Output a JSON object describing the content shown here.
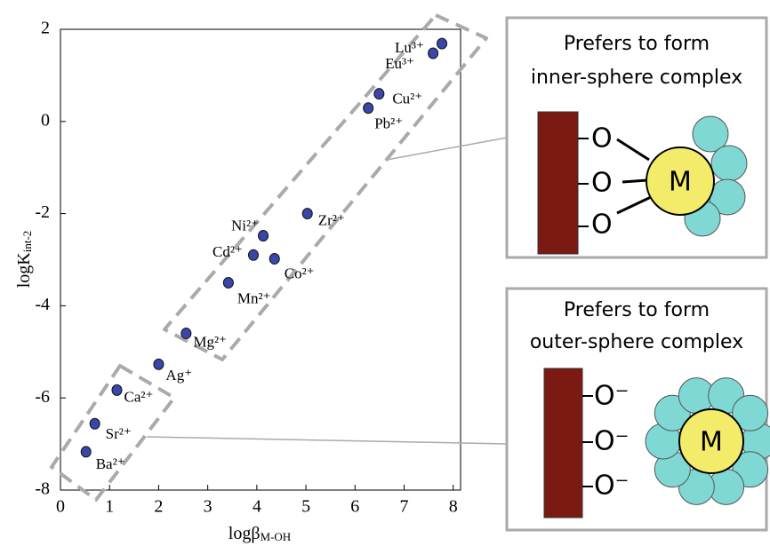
{
  "chart_data": {
    "type": "scatter",
    "x_label": "logβ",
    "x_label_sub": "M-OH",
    "y_label": "logK",
    "y_label_sub": "int-2",
    "xlim": [
      0,
      8.15
    ],
    "ylim": [
      -8,
      2
    ],
    "xticks": [
      0,
      1,
      2,
      3,
      4,
      5,
      6,
      7,
      8
    ],
    "yticks": [
      -8,
      -6,
      -4,
      -2,
      0,
      2
    ],
    "series": [
      {
        "color": "#3a46a8",
        "labels": [
          "Lu³⁺",
          "Eu³⁺",
          "Cu²⁺",
          "Pb²⁺",
          "Zr²⁺",
          "Ni²⁺",
          "Cd²⁺",
          "Co²⁺",
          "Mn²⁺",
          "Mg²⁺",
          "Ag⁺",
          "Ca²⁺",
          "Sr²⁺",
          "Ba²⁺"
        ],
        "x": [
          7.77,
          7.59,
          6.49,
          6.27,
          5.03,
          4.13,
          3.93,
          4.36,
          3.42,
          2.56,
          2.0,
          1.15,
          0.7,
          0.52
        ],
        "values": [
          1.69,
          1.48,
          0.6,
          0.29,
          -2.0,
          -2.48,
          -2.9,
          -2.98,
          -3.5,
          -4.6,
          -5.27,
          -5.83,
          -6.56,
          -7.17
        ]
      }
    ]
  },
  "panels": [
    {
      "title": [
        "Prefers to form",
        "inner-sphere complex"
      ],
      "ligands": [
        "O",
        "O",
        "O"
      ],
      "metal": "M"
    },
    {
      "title": [
        "Prefers to form",
        "outer-sphere complex"
      ],
      "ligands": [
        "O⁻",
        "O⁻",
        "O⁻"
      ],
      "metal": "M"
    }
  ]
}
